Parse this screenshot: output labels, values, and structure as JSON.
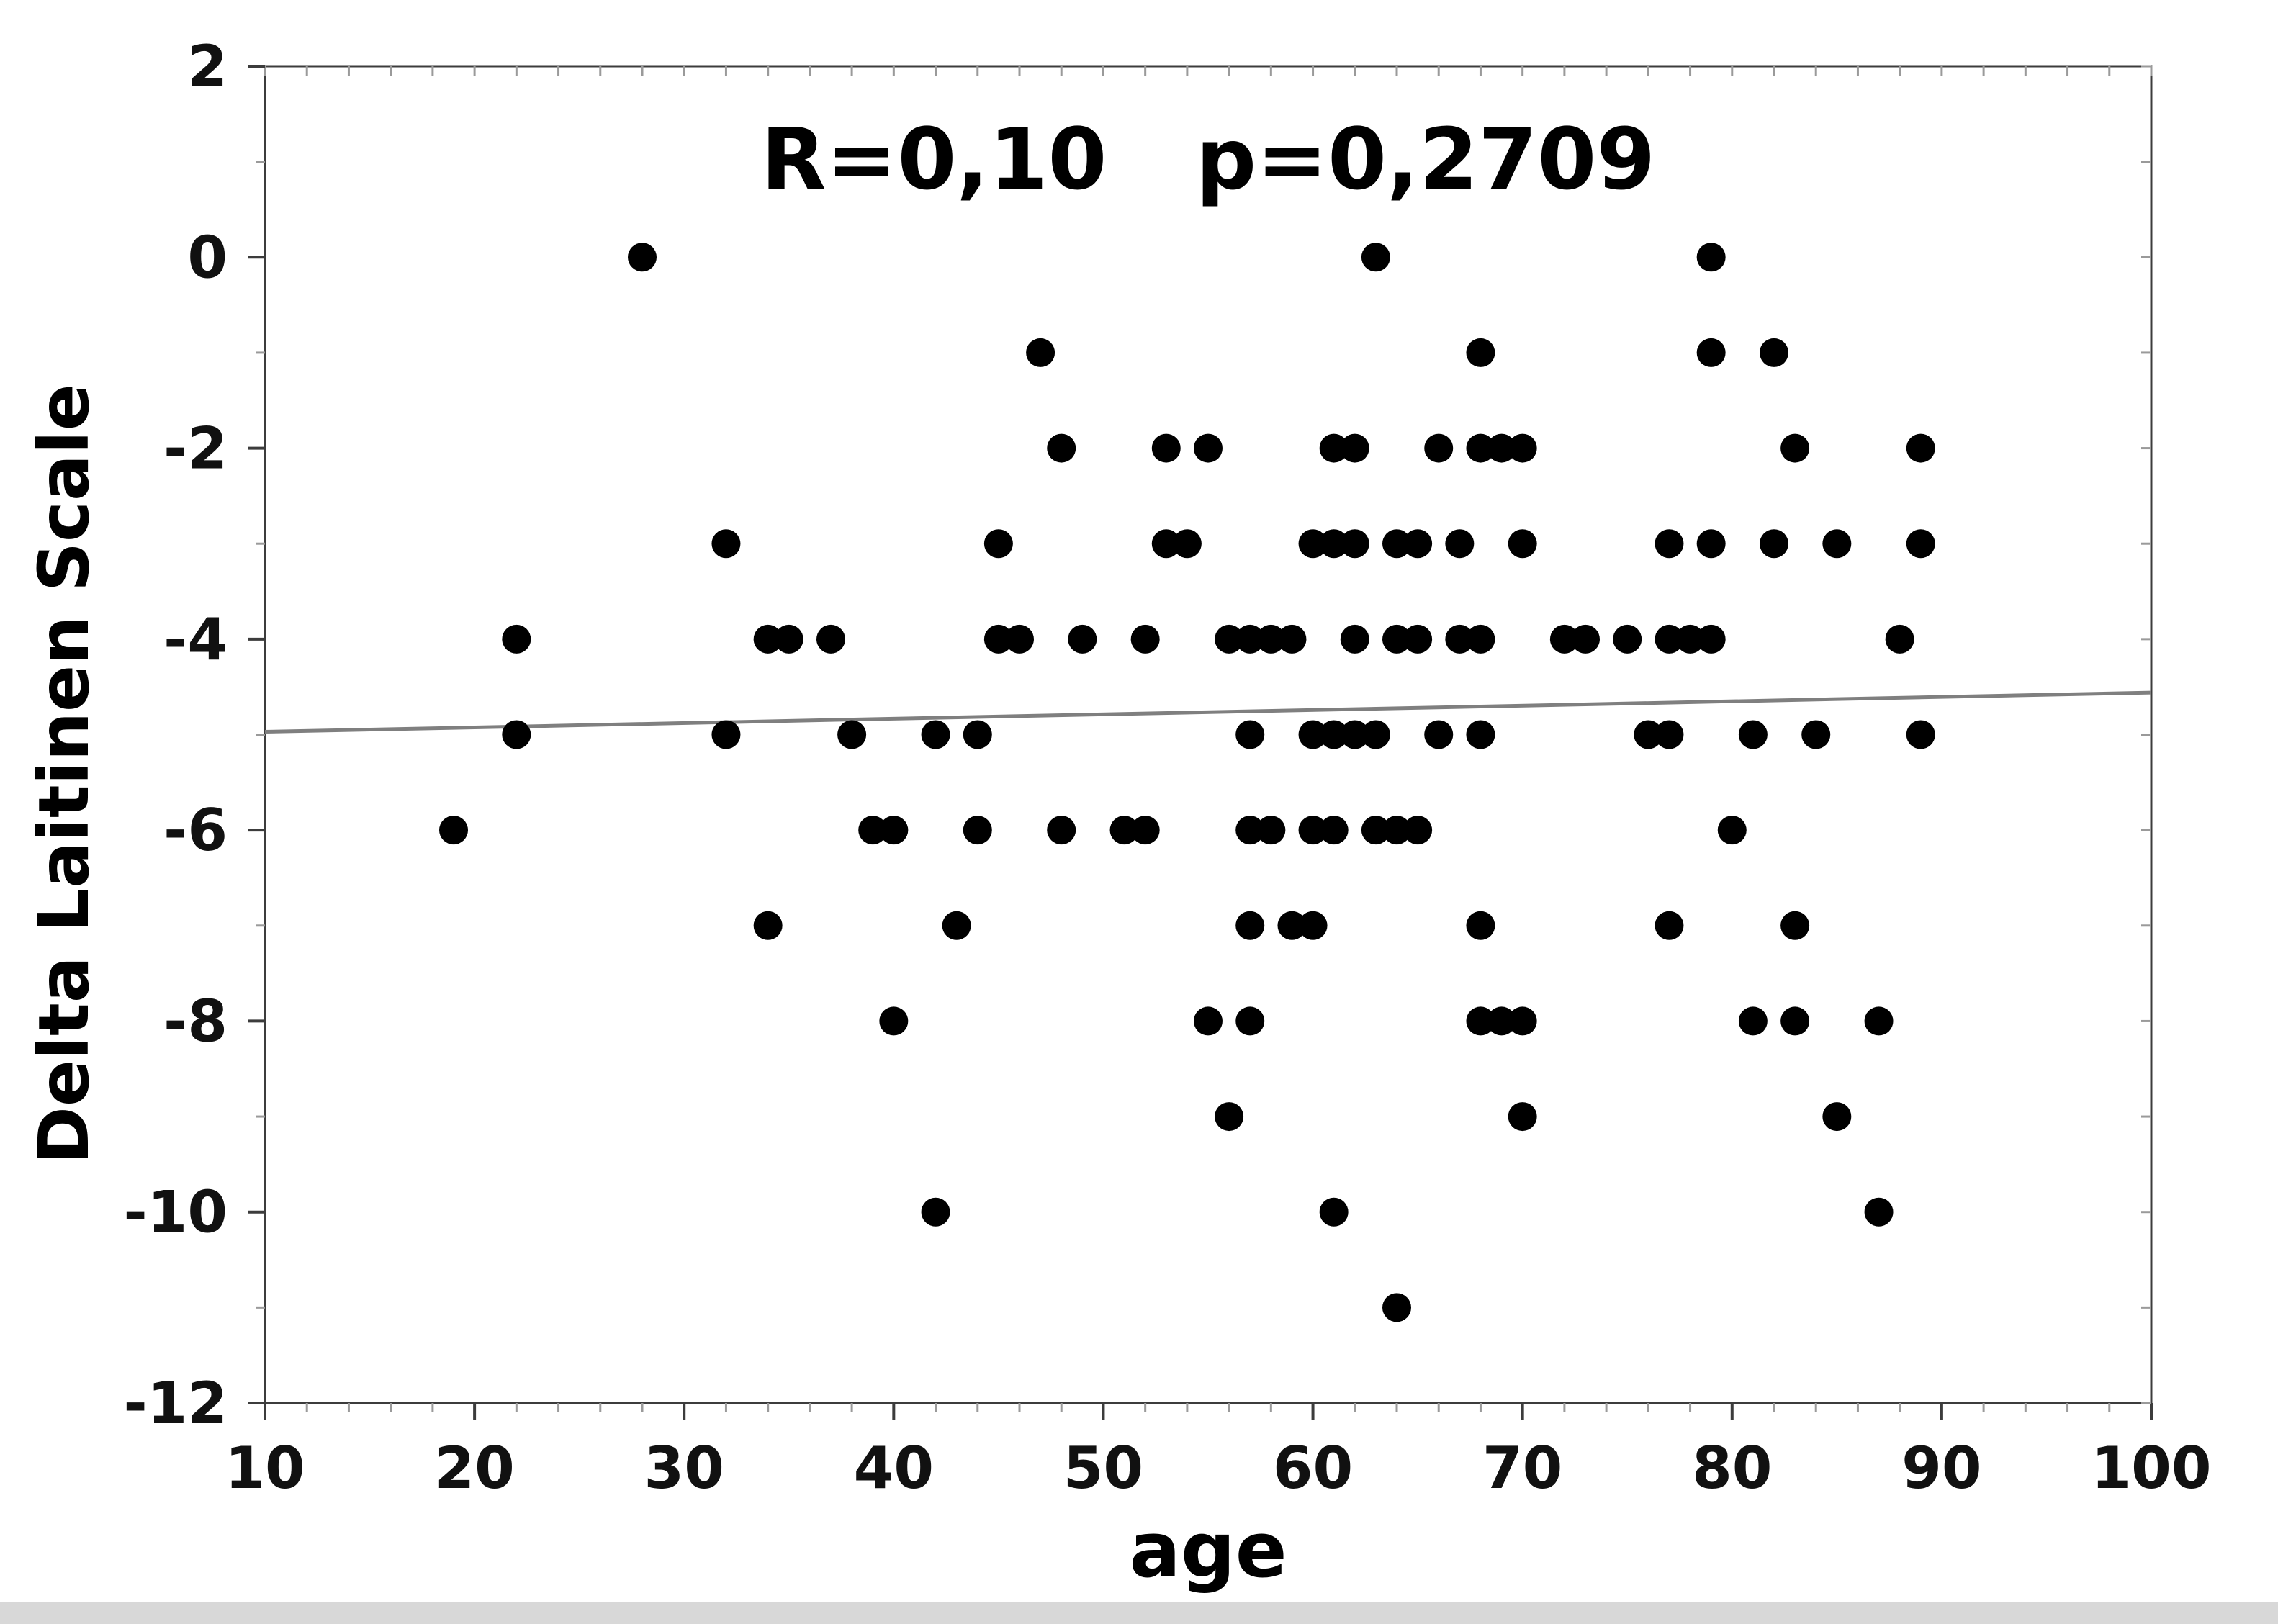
{
  "page": {
    "background_color": "#ffffff",
    "bottom_strip_color": "#d8d8d8"
  },
  "chart_data": {
    "type": "scatter",
    "title": "R=0,10   p=0,2709",
    "xlabel": "age",
    "ylabel": "Delta Laitinen Scale",
    "xlim": [
      10,
      100
    ],
    "ylim": [
      -12,
      2
    ],
    "x_ticks": [
      10,
      20,
      30,
      40,
      50,
      60,
      70,
      80,
      90,
      100
    ],
    "y_ticks": [
      2,
      0,
      -2,
      -4,
      -6,
      -8,
      -10,
      -12
    ],
    "x_minor_step": 2,
    "y_minor_step": 1,
    "grid": false,
    "legend": "none",
    "frame": "box",
    "point_color": "#000000",
    "point_radius_px": 20,
    "frame_color": "#3c3c3c",
    "minor_tick_color": "#9a9a9a",
    "major_tick_color": "#3c3c3c",
    "regression_line": {
      "color": "#7f7f7f",
      "x": [
        10,
        100
      ],
      "y": [
        -4.97,
        -4.56
      ]
    },
    "points": [
      [
        28,
        0
      ],
      [
        63,
        0
      ],
      [
        79,
        0
      ],
      [
        47,
        -1
      ],
      [
        68,
        -1
      ],
      [
        79,
        -1
      ],
      [
        82,
        -1
      ],
      [
        48,
        -2
      ],
      [
        53,
        -2
      ],
      [
        55,
        -2
      ],
      [
        61,
        -2
      ],
      [
        62,
        -2
      ],
      [
        66,
        -2
      ],
      [
        68,
        -2
      ],
      [
        69,
        -2
      ],
      [
        70,
        -2
      ],
      [
        83,
        -2
      ],
      [
        89,
        -2
      ],
      [
        32,
        -3
      ],
      [
        45,
        -3
      ],
      [
        53,
        -3
      ],
      [
        54,
        -3
      ],
      [
        60,
        -3
      ],
      [
        61,
        -3
      ],
      [
        62,
        -3
      ],
      [
        64,
        -3
      ],
      [
        65,
        -3
      ],
      [
        67,
        -3
      ],
      [
        70,
        -3
      ],
      [
        77,
        -3
      ],
      [
        79,
        -3
      ],
      [
        82,
        -3
      ],
      [
        85,
        -3
      ],
      [
        89,
        -3
      ],
      [
        22,
        -4
      ],
      [
        34,
        -4
      ],
      [
        35,
        -4
      ],
      [
        37,
        -4
      ],
      [
        45,
        -4
      ],
      [
        46,
        -4
      ],
      [
        49,
        -4
      ],
      [
        52,
        -4
      ],
      [
        56,
        -4
      ],
      [
        57,
        -4
      ],
      [
        58,
        -4
      ],
      [
        59,
        -4
      ],
      [
        62,
        -4
      ],
      [
        64,
        -4
      ],
      [
        65,
        -4
      ],
      [
        67,
        -4
      ],
      [
        68,
        -4
      ],
      [
        72,
        -4
      ],
      [
        73,
        -4
      ],
      [
        75,
        -4
      ],
      [
        77,
        -4
      ],
      [
        78,
        -4
      ],
      [
        79,
        -4
      ],
      [
        88,
        -4
      ],
      [
        22,
        -5
      ],
      [
        32,
        -5
      ],
      [
        38,
        -5
      ],
      [
        42,
        -5
      ],
      [
        44,
        -5
      ],
      [
        57,
        -5
      ],
      [
        60,
        -5
      ],
      [
        61,
        -5
      ],
      [
        62,
        -5
      ],
      [
        63,
        -5
      ],
      [
        66,
        -5
      ],
      [
        68,
        -5
      ],
      [
        76,
        -5
      ],
      [
        77,
        -5
      ],
      [
        81,
        -5
      ],
      [
        84,
        -5
      ],
      [
        89,
        -5
      ],
      [
        19,
        -6
      ],
      [
        39,
        -6
      ],
      [
        40,
        -6
      ],
      [
        44,
        -6
      ],
      [
        48,
        -6
      ],
      [
        51,
        -6
      ],
      [
        52,
        -6
      ],
      [
        57,
        -6
      ],
      [
        58,
        -6
      ],
      [
        60,
        -6
      ],
      [
        61,
        -6
      ],
      [
        63,
        -6
      ],
      [
        64,
        -6
      ],
      [
        65,
        -6
      ],
      [
        80,
        -6
      ],
      [
        34,
        -7
      ],
      [
        43,
        -7
      ],
      [
        57,
        -7
      ],
      [
        59,
        -7
      ],
      [
        60,
        -7
      ],
      [
        68,
        -7
      ],
      [
        77,
        -7
      ],
      [
        83,
        -7
      ],
      [
        40,
        -8
      ],
      [
        55,
        -8
      ],
      [
        57,
        -8
      ],
      [
        68,
        -8
      ],
      [
        69,
        -8
      ],
      [
        70,
        -8
      ],
      [
        81,
        -8
      ],
      [
        83,
        -8
      ],
      [
        87,
        -8
      ],
      [
        56,
        -9
      ],
      [
        70,
        -9
      ],
      [
        85,
        -9
      ],
      [
        42,
        -10
      ],
      [
        61,
        -10
      ],
      [
        87,
        -10
      ],
      [
        64,
        -11
      ]
    ]
  }
}
